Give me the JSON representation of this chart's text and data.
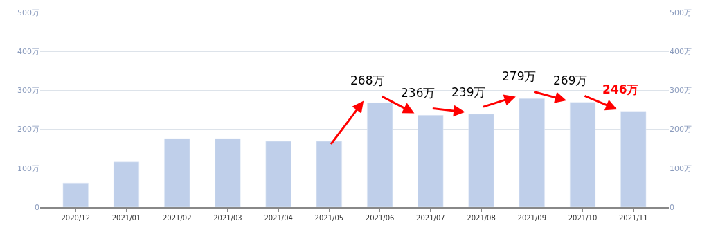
{
  "chart_data": {
    "type": "bar",
    "categories": [
      "2020/12",
      "2021/01",
      "2021/02",
      "2021/03",
      "2021/04",
      "2021/05",
      "2021/06",
      "2021/07",
      "2021/08",
      "2021/09",
      "2021/10",
      "2021/11"
    ],
    "values": [
      62,
      116,
      176,
      176,
      169,
      169,
      268,
      236,
      239,
      279,
      269,
      246
    ],
    "value_labels": [
      null,
      null,
      null,
      null,
      null,
      null,
      "268万",
      "236万",
      "239万",
      "279万",
      "269万",
      "246万"
    ],
    "color": "#bfcfea",
    "ylim": [
      0,
      500
    ],
    "yticks": [
      0,
      {
        "value": 100,
        "label": "100万"
      },
      {
        "value": 200,
        "label": "200万"
      },
      {
        "value": 300,
        "label": "300万"
      },
      {
        "value": 400,
        "label": "400万"
      },
      {
        "value": 500,
        "label": "500万"
      }
    ],
    "y2lim": [
      0,
      500
    ],
    "y2ticks": [
      0,
      {
        "value": 100,
        "label": "100万"
      },
      {
        "value": 200,
        "label": "200万"
      },
      {
        "value": 300,
        "label": "300万"
      },
      {
        "value": 400,
        "label": "400万"
      },
      {
        "value": 500,
        "label": "500万"
      }
    ],
    "grid": "y"
  }
}
